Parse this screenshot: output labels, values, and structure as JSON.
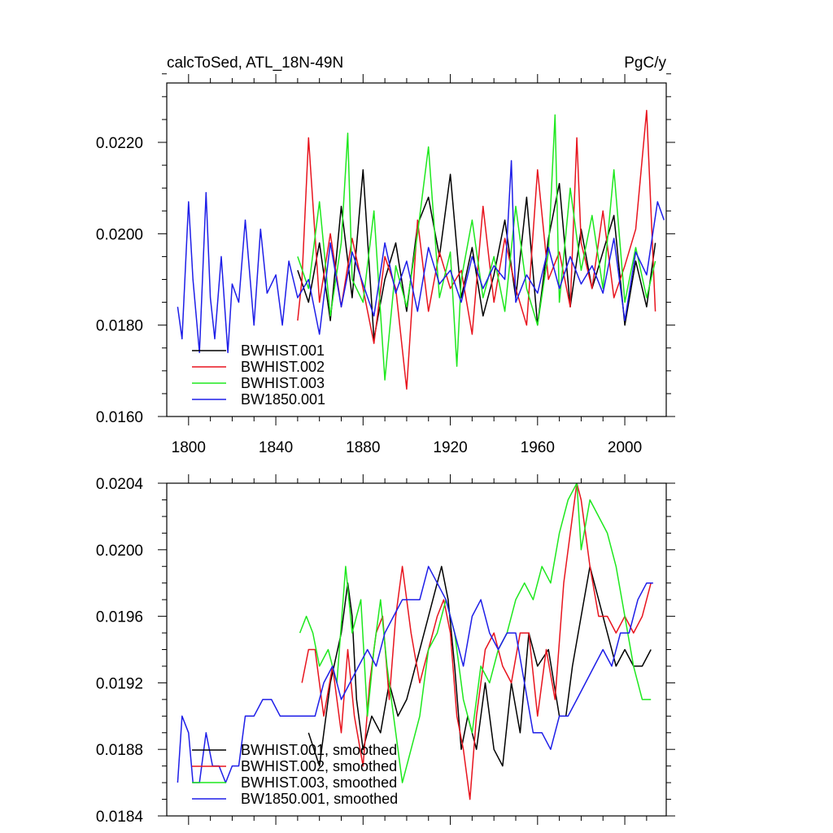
{
  "header": {
    "left_title": "calcToSed, ATL_18N-49N",
    "right_title": "PgC/y"
  },
  "colors": {
    "BWHIST.001": "#000000",
    "BWHIST.002": "#e8141e",
    "BWHIST.003": "#1ee81e",
    "BW1850.001": "#1e1ee8"
  },
  "chart_data": [
    {
      "type": "line",
      "title": "calcToSed, ATL_18N-49N",
      "units": "PgC/y",
      "xlim": [
        1790,
        2019
      ],
      "ylim": [
        0.016,
        0.0233
      ],
      "x_ticks": [
        "1800",
        "1840",
        "1880",
        "1920",
        "1960",
        "2000"
      ],
      "y_ticks": [
        "0.0160",
        "0.0180",
        "0.0200",
        "0.0220"
      ],
      "legend": {
        "position": "bottom-left",
        "entries": [
          "BWHIST.001",
          "BWHIST.002",
          "BWHIST.003",
          "BW1850.001"
        ]
      },
      "series": [
        {
          "name": "BWHIST.001",
          "x": [
            1850,
            1855,
            1860,
            1865,
            1870,
            1875,
            1880,
            1885,
            1890,
            1895,
            1900,
            1905,
            1910,
            1915,
            1920,
            1925,
            1930,
            1935,
            1940,
            1945,
            1950,
            1955,
            1960,
            1965,
            1970,
            1975,
            1980,
            1985,
            1990,
            1995,
            2000,
            2005,
            2010,
            2014
          ],
          "y": [
            0.0192,
            0.0185,
            0.0198,
            0.0181,
            0.0206,
            0.0186,
            0.0214,
            0.0177,
            0.019,
            0.0198,
            0.0183,
            0.0202,
            0.0208,
            0.0195,
            0.0213,
            0.0186,
            0.0197,
            0.0182,
            0.0191,
            0.0203,
            0.0186,
            0.0208,
            0.018,
            0.0199,
            0.0211,
            0.0184,
            0.0201,
            0.0188,
            0.0196,
            0.0204,
            0.018,
            0.0194,
            0.0184,
            0.0198
          ]
        },
        {
          "name": "BWHIST.002",
          "x": [
            1850,
            1852,
            1855,
            1860,
            1865,
            1870,
            1875,
            1880,
            1885,
            1890,
            1895,
            1900,
            1905,
            1910,
            1915,
            1920,
            1925,
            1930,
            1935,
            1940,
            1945,
            1950,
            1955,
            1960,
            1965,
            1970,
            1975,
            1978,
            1980,
            1985,
            1990,
            1995,
            2000,
            2005,
            2010,
            2014
          ],
          "y": [
            0.0181,
            0.019,
            0.0221,
            0.0185,
            0.02,
            0.0184,
            0.0199,
            0.0188,
            0.0176,
            0.0195,
            0.0188,
            0.0166,
            0.0203,
            0.0183,
            0.0196,
            0.0188,
            0.0192,
            0.0178,
            0.0206,
            0.0185,
            0.0199,
            0.0188,
            0.018,
            0.0214,
            0.019,
            0.0196,
            0.0184,
            0.0221,
            0.0198,
            0.0188,
            0.0205,
            0.0186,
            0.0193,
            0.0201,
            0.0227,
            0.0183
          ]
        },
        {
          "name": "BWHIST.003",
          "x": [
            1850,
            1855,
            1860,
            1865,
            1870,
            1873,
            1875,
            1880,
            1885,
            1890,
            1895,
            1900,
            1905,
            1910,
            1915,
            1920,
            1923,
            1925,
            1930,
            1935,
            1940,
            1945,
            1950,
            1955,
            1960,
            1965,
            1968,
            1970,
            1975,
            1980,
            1985,
            1990,
            1995,
            2000,
            2005,
            2010,
            2014
          ],
          "y": [
            0.0195,
            0.0188,
            0.0207,
            0.0182,
            0.0198,
            0.0222,
            0.019,
            0.0185,
            0.0205,
            0.0168,
            0.0193,
            0.0184,
            0.02,
            0.0219,
            0.0186,
            0.0196,
            0.0171,
            0.019,
            0.0203,
            0.0186,
            0.0195,
            0.0183,
            0.0206,
            0.0188,
            0.018,
            0.0196,
            0.0226,
            0.0185,
            0.021,
            0.0192,
            0.0204,
            0.0188,
            0.0214,
            0.0185,
            0.0197,
            0.0186,
            0.0194
          ]
        },
        {
          "name": "BW1850.001",
          "x": [
            1795,
            1797,
            1800,
            1802,
            1805,
            1808,
            1810,
            1812,
            1815,
            1818,
            1820,
            1823,
            1826,
            1830,
            1833,
            1836,
            1840,
            1843,
            1846,
            1850,
            1855,
            1860,
            1865,
            1870,
            1875,
            1880,
            1885,
            1890,
            1895,
            1900,
            1905,
            1910,
            1915,
            1920,
            1925,
            1930,
            1935,
            1940,
            1945,
            1948,
            1950,
            1955,
            1960,
            1965,
            1970,
            1975,
            1980,
            1985,
            1990,
            1995,
            2000,
            2005,
            2010,
            2015,
            2018
          ],
          "y": [
            0.0184,
            0.0177,
            0.0207,
            0.019,
            0.0174,
            0.0209,
            0.0186,
            0.0177,
            0.0195,
            0.0174,
            0.0189,
            0.0185,
            0.0203,
            0.018,
            0.0201,
            0.0187,
            0.0191,
            0.018,
            0.0194,
            0.0186,
            0.019,
            0.0178,
            0.0198,
            0.0184,
            0.0196,
            0.0189,
            0.0182,
            0.0198,
            0.0187,
            0.0194,
            0.0183,
            0.0197,
            0.0189,
            0.0192,
            0.0185,
            0.0195,
            0.0188,
            0.0193,
            0.019,
            0.0216,
            0.0185,
            0.0191,
            0.0187,
            0.0197,
            0.0188,
            0.0195,
            0.0189,
            0.0193,
            0.0187,
            0.0199,
            0.0181,
            0.0196,
            0.0191,
            0.0207,
            0.0203
          ]
        }
      ]
    },
    {
      "type": "line",
      "xlim": [
        1790,
        2019
      ],
      "ylim": [
        0.0184,
        0.0204
      ],
      "x_ticks": [
        "1800",
        "1840",
        "1880",
        "1920",
        "1960",
        "2000"
      ],
      "y_ticks": [
        "0.0184",
        "0.0188",
        "0.0192",
        "0.0196",
        "0.0200",
        "0.0204"
      ],
      "legend": {
        "position": "bottom-left",
        "entries": [
          "BWHIST.001, smoothed",
          "BWHIST.002, smoothed",
          "BWHIST.003, smoothed",
          "BW1850.001, smoothed"
        ]
      },
      "series": [
        {
          "name": "BWHIST.001, smoothed",
          "x": [
            1855,
            1860,
            1865,
            1870,
            1873,
            1875,
            1877,
            1880,
            1884,
            1888,
            1892,
            1896,
            1900,
            1904,
            1908,
            1912,
            1916,
            1919,
            1922,
            1925,
            1928,
            1932,
            1936,
            1940,
            1944,
            1948,
            1952,
            1956,
            1960,
            1965,
            1970,
            1973,
            1976,
            1980,
            1984,
            1988,
            1992,
            1996,
            2000,
            2004,
            2008,
            2012
          ],
          "y": [
            0.0189,
            0.0187,
            0.0192,
            0.0195,
            0.0198,
            0.0196,
            0.0191,
            0.0188,
            0.019,
            0.0189,
            0.0192,
            0.019,
            0.0191,
            0.0193,
            0.0195,
            0.0197,
            0.0199,
            0.0197,
            0.0193,
            0.0188,
            0.019,
            0.0188,
            0.0192,
            0.0188,
            0.0187,
            0.0192,
            0.0189,
            0.0195,
            0.0193,
            0.0194,
            0.019,
            0.019,
            0.0193,
            0.0196,
            0.0199,
            0.0197,
            0.0195,
            0.0193,
            0.0194,
            0.0193,
            0.0193,
            0.0194
          ]
        },
        {
          "name": "BWHIST.002, smoothed",
          "x": [
            1852,
            1855,
            1858,
            1862,
            1866,
            1870,
            1873,
            1876,
            1880,
            1883,
            1886,
            1889,
            1892,
            1895,
            1898,
            1902,
            1906,
            1910,
            1914,
            1917,
            1920,
            1923,
            1926,
            1929,
            1932,
            1936,
            1940,
            1944,
            1948,
            1952,
            1956,
            1960,
            1964,
            1968,
            1972,
            1976,
            1978,
            1980,
            1984,
            1988,
            1992,
            1996,
            2000,
            2004,
            2008,
            2012
          ],
          "y": [
            0.0192,
            0.0194,
            0.0194,
            0.019,
            0.0193,
            0.0189,
            0.0194,
            0.019,
            0.0187,
            0.0192,
            0.0195,
            0.0196,
            0.0191,
            0.0196,
            0.0199,
            0.0195,
            0.0192,
            0.0194,
            0.0196,
            0.0197,
            0.0195,
            0.019,
            0.0188,
            0.0185,
            0.019,
            0.0194,
            0.0195,
            0.0193,
            0.0192,
            0.0195,
            0.0195,
            0.019,
            0.0194,
            0.0191,
            0.0198,
            0.0202,
            0.0204,
            0.0203,
            0.0199,
            0.0196,
            0.0196,
            0.0195,
            0.0196,
            0.0195,
            0.0196,
            0.0198
          ]
        },
        {
          "name": "BWHIST.003, smoothed",
          "x": [
            1851,
            1854,
            1857,
            1860,
            1864,
            1868,
            1872,
            1875,
            1879,
            1882,
            1885,
            1888,
            1891,
            1894,
            1898,
            1902,
            1906,
            1910,
            1914,
            1918,
            1922,
            1926,
            1930,
            1934,
            1938,
            1942,
            1946,
            1950,
            1954,
            1958,
            1962,
            1966,
            1970,
            1974,
            1978,
            1980,
            1984,
            1988,
            1992,
            1996,
            2000,
            2004,
            2008,
            2012
          ],
          "y": [
            0.0195,
            0.0196,
            0.0195,
            0.0193,
            0.0194,
            0.0192,
            0.0199,
            0.0195,
            0.0197,
            0.019,
            0.0194,
            0.0197,
            0.0193,
            0.019,
            0.0186,
            0.0188,
            0.019,
            0.0194,
            0.0195,
            0.0197,
            0.0195,
            0.0191,
            0.0189,
            0.0193,
            0.0192,
            0.0194,
            0.0195,
            0.0197,
            0.0198,
            0.0197,
            0.0199,
            0.0198,
            0.0201,
            0.0203,
            0.0204,
            0.02,
            0.0203,
            0.0202,
            0.0201,
            0.0199,
            0.0196,
            0.0193,
            0.0191,
            0.0191
          ]
        },
        {
          "name": "BW1850.001, smoothed",
          "x": [
            1795,
            1797,
            1800,
            1802,
            1805,
            1808,
            1811,
            1814,
            1817,
            1820,
            1823,
            1826,
            1830,
            1834,
            1838,
            1842,
            1846,
            1850,
            1854,
            1858,
            1862,
            1866,
            1870,
            1874,
            1878,
            1882,
            1886,
            1890,
            1894,
            1898,
            1902,
            1906,
            1910,
            1914,
            1918,
            1922,
            1926,
            1930,
            1934,
            1938,
            1942,
            1946,
            1950,
            1954,
            1958,
            1962,
            1966,
            1970,
            1974,
            1978,
            1982,
            1986,
            1990,
            1994,
            1998,
            2002,
            2006,
            2010,
            2013
          ],
          "y": [
            0.0186,
            0.019,
            0.0189,
            0.0186,
            0.0186,
            0.0189,
            0.0187,
            0.0187,
            0.0186,
            0.0187,
            0.0187,
            0.019,
            0.019,
            0.0191,
            0.0191,
            0.019,
            0.019,
            0.019,
            0.019,
            0.019,
            0.0192,
            0.0193,
            0.0191,
            0.0192,
            0.0193,
            0.0194,
            0.0193,
            0.0195,
            0.0196,
            0.0197,
            0.0197,
            0.0197,
            0.0199,
            0.0198,
            0.0197,
            0.0195,
            0.0193,
            0.0196,
            0.0197,
            0.0195,
            0.0194,
            0.0195,
            0.0195,
            0.0192,
            0.0189,
            0.0189,
            0.0188,
            0.019,
            0.019,
            0.0191,
            0.0192,
            0.0193,
            0.0194,
            0.0193,
            0.0195,
            0.0195,
            0.0197,
            0.0198,
            0.0198
          ]
        }
      ]
    }
  ]
}
